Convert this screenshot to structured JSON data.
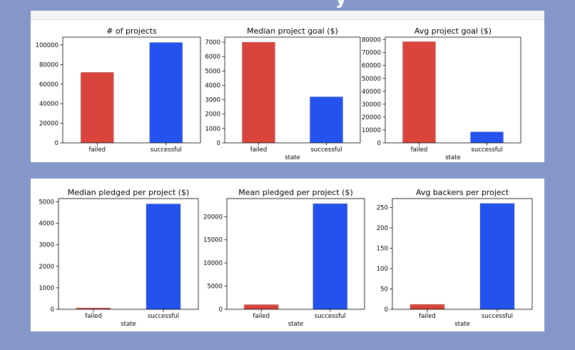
{
  "colors": {
    "failed": "#d9453c",
    "successful": "#2352ee"
  },
  "chart_data": [
    {
      "type": "bar",
      "title": "# of projects",
      "xlabel": "",
      "ylabel": "",
      "categories": [
        "failed",
        "successful"
      ],
      "values": [
        72000,
        102500
      ],
      "ylim": [
        0,
        108000
      ],
      "yticks": [
        0,
        20000,
        40000,
        60000,
        80000,
        100000
      ],
      "grid": false
    },
    {
      "type": "bar",
      "title": "Median project goal ($)",
      "xlabel": "state",
      "ylabel": "",
      "categories": [
        "failed",
        "successful"
      ],
      "values": [
        7000,
        3200
      ],
      "ylim": [
        0,
        7350
      ],
      "yticks": [
        0,
        1000,
        2000,
        3000,
        4000,
        5000,
        6000,
        7000
      ],
      "grid": false
    },
    {
      "type": "bar",
      "title": "Avg project goal ($)",
      "xlabel": "state",
      "ylabel": "",
      "categories": [
        "failed",
        "successful"
      ],
      "values": [
        78500,
        8500
      ],
      "ylim": [
        0,
        82000
      ],
      "yticks": [
        0,
        10000,
        20000,
        30000,
        40000,
        50000,
        60000,
        70000,
        80000
      ],
      "grid": false
    },
    {
      "type": "bar",
      "title": "Median pledged per project ($)",
      "xlabel": "state",
      "ylabel": "",
      "categories": [
        "failed",
        "successful"
      ],
      "values": [
        60,
        4900
      ],
      "ylim": [
        0,
        5150
      ],
      "yticks": [
        0,
        1000,
        2000,
        3000,
        4000,
        5000
      ],
      "grid": false
    },
    {
      "type": "bar",
      "title": "Mean pledged per project ($)",
      "xlabel": "state",
      "ylabel": "",
      "categories": [
        "failed",
        "successful"
      ],
      "values": [
        1000,
        22800
      ],
      "ylim": [
        0,
        23900
      ],
      "yticks": [
        0,
        5000,
        10000,
        15000,
        20000
      ],
      "grid": false
    },
    {
      "type": "bar",
      "title": "Avg backers per project",
      "xlabel": "state",
      "ylabel": "",
      "categories": [
        "failed",
        "successful"
      ],
      "values": [
        12,
        260
      ],
      "ylim": [
        0,
        272
      ],
      "yticks": [
        0,
        50,
        100,
        150,
        200,
        250
      ],
      "grid": false
    }
  ]
}
